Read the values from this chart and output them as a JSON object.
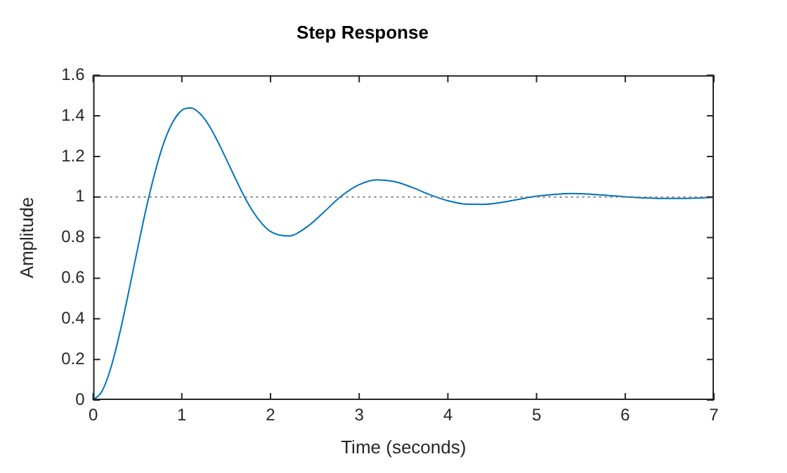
{
  "chart_data": {
    "type": "line",
    "title": "Step Response",
    "xlabel": "Time (seconds)",
    "ylabel": "Amplitude",
    "x": [
      0,
      0.1,
      0.2,
      0.3,
      0.4,
      0.5,
      0.6,
      0.7,
      0.8,
      0.9,
      1.0,
      1.1,
      1.2,
      1.3,
      1.4,
      1.5,
      1.6,
      1.7,
      1.8,
      1.9,
      2.0,
      2.2,
      2.4,
      2.6,
      2.8,
      3.0,
      3.2,
      3.4,
      3.6,
      3.8,
      4.0,
      4.2,
      4.4,
      4.6,
      4.8,
      5.0,
      5.2,
      5.4,
      5.6,
      5.8,
      6.0,
      6.2,
      6.4,
      6.6,
      6.8,
      7.0
    ],
    "series": [
      {
        "color": "#0072bd",
        "values": [
          0,
          0.043,
          0.159,
          0.329,
          0.531,
          0.743,
          0.947,
          1.126,
          1.271,
          1.371,
          1.427,
          1.439,
          1.413,
          1.357,
          1.278,
          1.188,
          1.095,
          1.006,
          0.93,
          0.871,
          0.83,
          0.808,
          0.849,
          0.925,
          1.005,
          1.061,
          1.085,
          1.076,
          1.047,
          1.011,
          0.982,
          0.965,
          0.964,
          0.973,
          0.989,
          1.004,
          1.013,
          1.017,
          1.014,
          1.008,
          1.001,
          0.996,
          0.993,
          0.993,
          0.995,
          0.999
        ]
      }
    ],
    "xlim": [
      0,
      7
    ],
    "xticks": [
      0,
      1,
      2,
      3,
      4,
      5,
      6,
      7
    ],
    "ylim": [
      0,
      1.6
    ],
    "yticks": [
      0,
      0.2,
      0.4,
      0.6,
      0.8,
      1,
      1.2,
      1.4,
      1.6
    ],
    "ref_lines": [
      {
        "axis": "y",
        "value": 1,
        "color": "#808080",
        "line_style": "dotted"
      }
    ],
    "grid": false,
    "legend": false,
    "marker": "none",
    "line_style": "solid"
  }
}
